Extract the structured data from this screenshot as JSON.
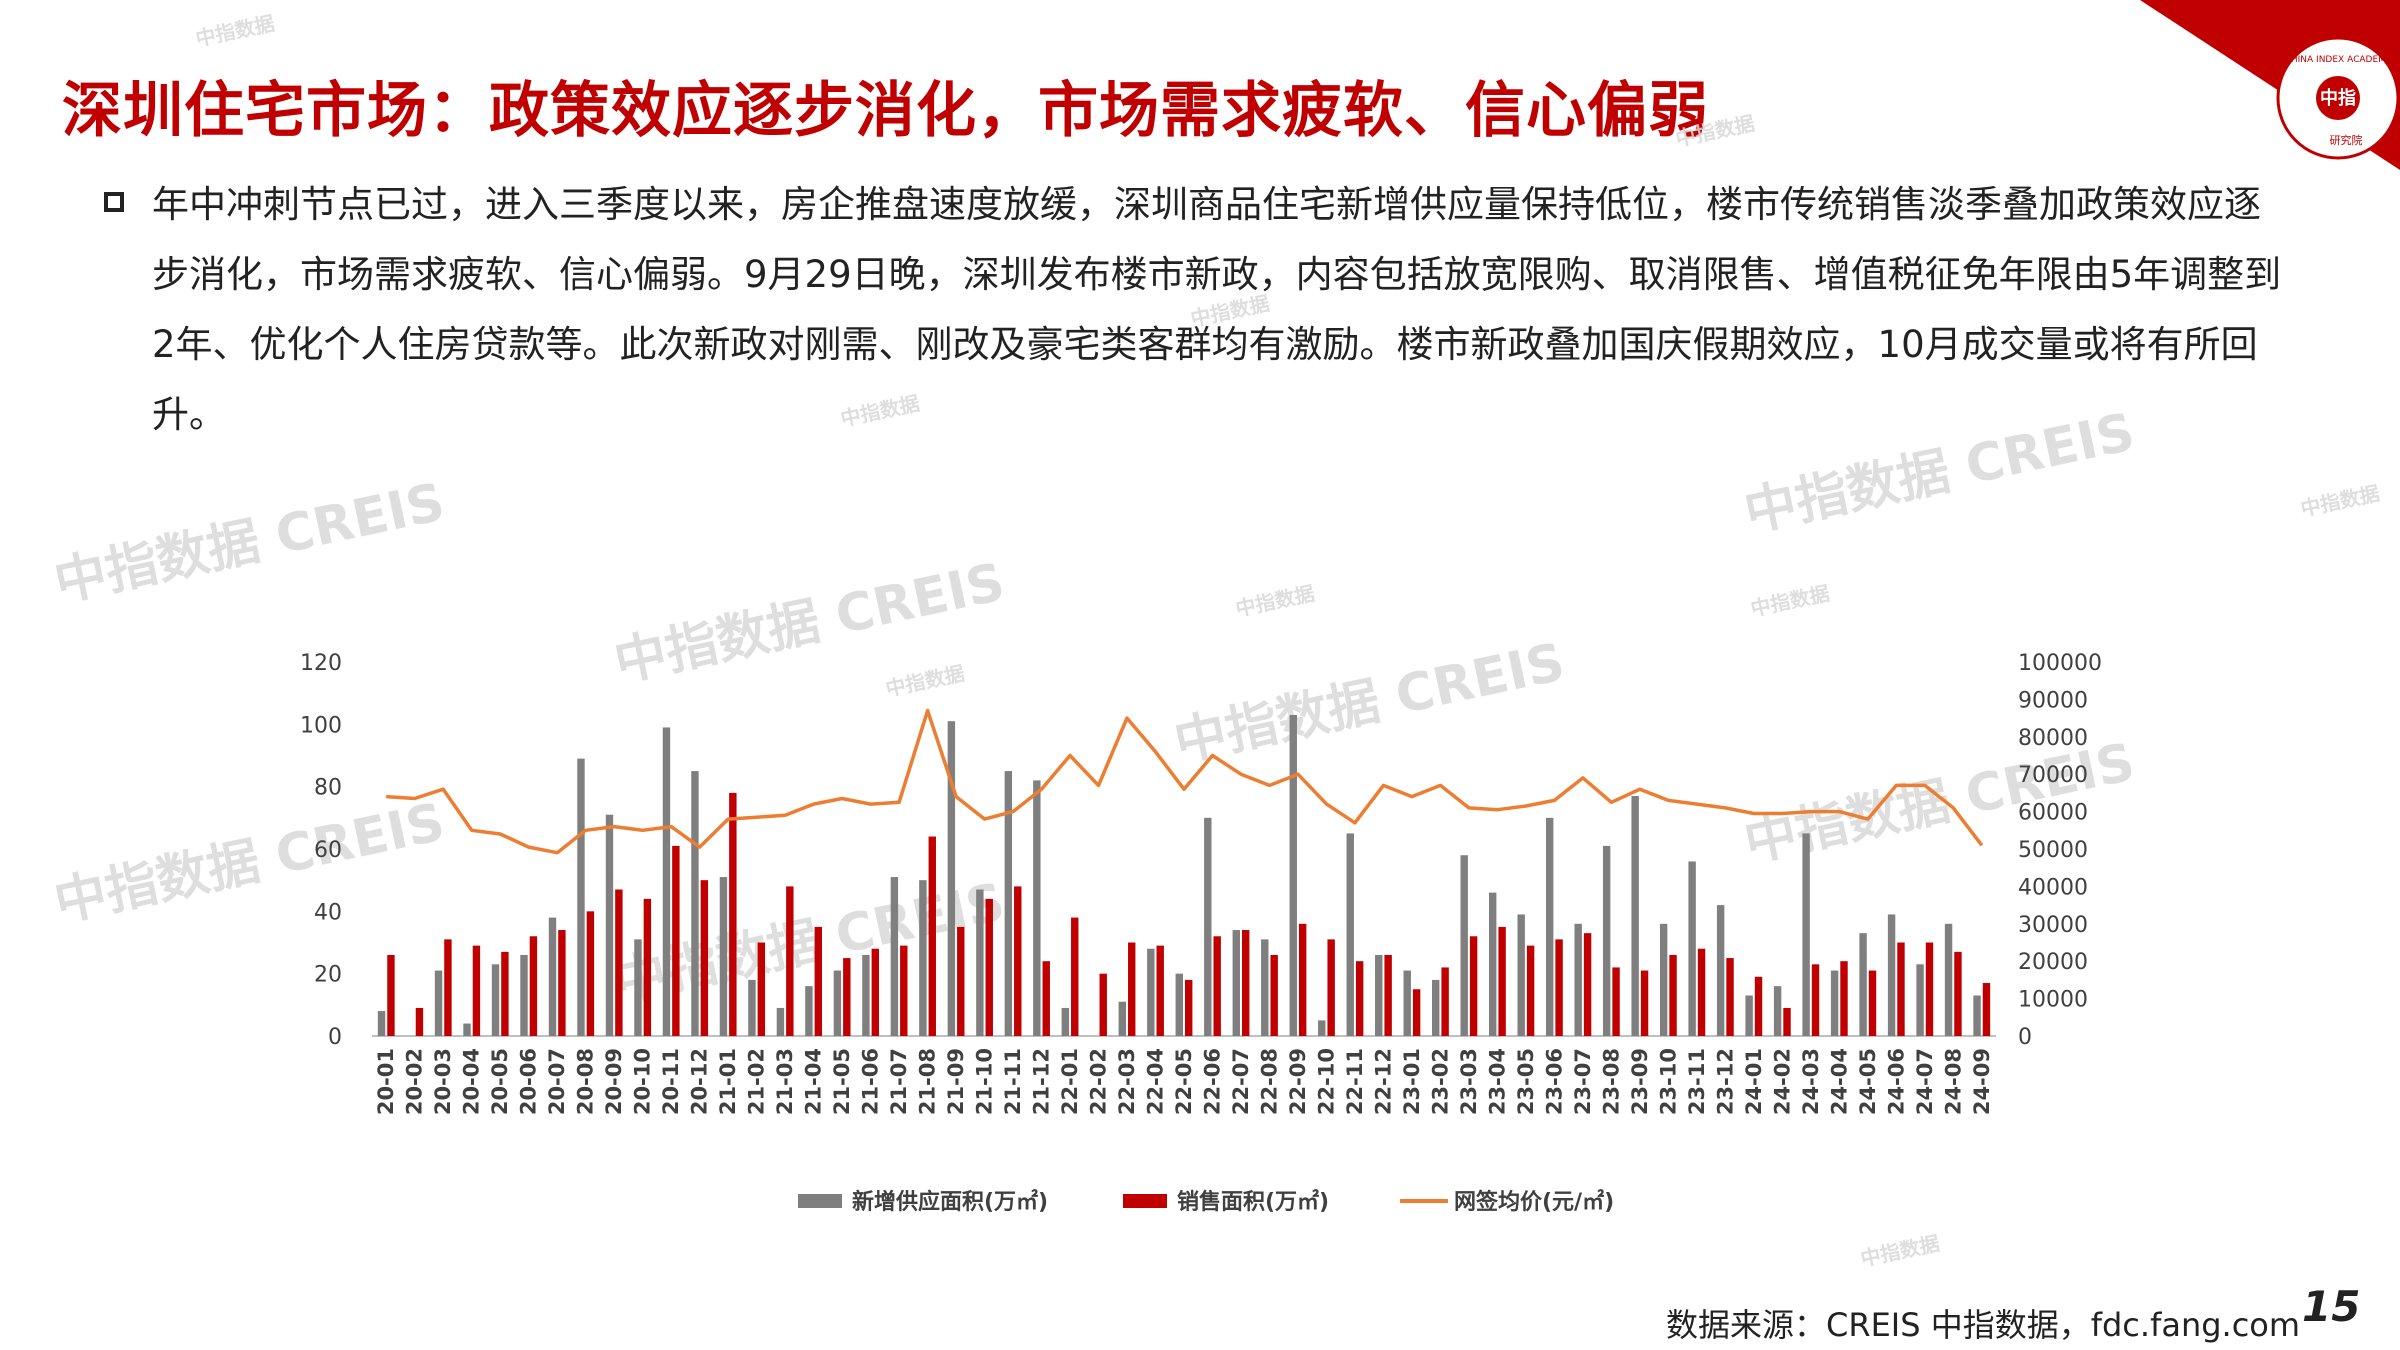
{
  "slide": {
    "title": "深圳住宅市场：政策效应逐步消化，市场需求疲软、信心偏弱",
    "body": "年中冲刺节点已过，进入三季度以来，房企推盘速度放缓，深圳商品住宅新增供应量保持低位，楼市传统销售淡季叠加政策效应逐步消化，市场需求疲软、信心偏弱。9月29日晚，深圳发布楼市新政，内容包括放宽限购、取消限售、增值税征免年限由5年调整到2年、优化个人住房贷款等。此次新政对刚需、刚改及豪宅类客群均有激励。楼市新政叠加国庆假期效应，10月成交量或将有所回升。",
    "source": "数据来源：CREIS 中指数据，fdc.fang.com",
    "page_number": "15",
    "logo_text": "CHINA INDEX ACADEMY",
    "logo_center": "中指",
    "logo_bottom": "研究院",
    "watermark_big": "中指数据 CREIS",
    "watermark_small_1": "中指数据",
    "watermark_small_2": "CREIS",
    "colors": {
      "title": "#c00000",
      "supply": "#7f7f7f",
      "sales": "#c00000",
      "price": "#ed7d31"
    }
  },
  "chart_data": {
    "type": "bar",
    "categories": [
      "20-01",
      "20-02",
      "20-03",
      "20-04",
      "20-05",
      "20-06",
      "20-07",
      "20-08",
      "20-09",
      "20-10",
      "20-11",
      "20-12",
      "21-01",
      "21-02",
      "21-03",
      "21-04",
      "21-05",
      "21-06",
      "21-07",
      "21-08",
      "21-09",
      "21-10",
      "21-11",
      "21-12",
      "22-01",
      "22-02",
      "22-03",
      "22-04",
      "22-05",
      "22-06",
      "22-07",
      "22-08",
      "22-09",
      "22-10",
      "22-11",
      "22-12",
      "23-01",
      "23-02",
      "23-03",
      "23-04",
      "23-05",
      "23-06",
      "23-07",
      "23-08",
      "23-09",
      "23-10",
      "23-11",
      "23-12",
      "24-01",
      "24-02",
      "24-03",
      "24-04",
      "24-05",
      "24-06",
      "24-07",
      "24-08",
      "24-09"
    ],
    "series": [
      {
        "name": "新增供应面积(万㎡)",
        "type": "bar",
        "axis": "left",
        "values": [
          8,
          0,
          21,
          4,
          23,
          26,
          38,
          89,
          71,
          31,
          99,
          85,
          51,
          18,
          9,
          16,
          21,
          26,
          51,
          50,
          101,
          47,
          85,
          82,
          9,
          0,
          11,
          28,
          20,
          70,
          34,
          31,
          103,
          5,
          65,
          26,
          21,
          18,
          58,
          46,
          39,
          70,
          36,
          61,
          77,
          36,
          56,
          42,
          13,
          16,
          65,
          21,
          33,
          39,
          23,
          36,
          13
        ]
      },
      {
        "name": "销售面积(万㎡)",
        "type": "bar",
        "axis": "left",
        "values": [
          26,
          9,
          31,
          29,
          27,
          32,
          34,
          40,
          47,
          44,
          61,
          50,
          78,
          30,
          48,
          35,
          25,
          28,
          29,
          64,
          35,
          44,
          48,
          24,
          38,
          20,
          30,
          29,
          18,
          32,
          34,
          26,
          36,
          31,
          24,
          26,
          15,
          22,
          32,
          35,
          29,
          31,
          33,
          22,
          21,
          26,
          28,
          25,
          19,
          9,
          23,
          24,
          21,
          30,
          30,
          27,
          17
        ]
      },
      {
        "name": "网签均价(元/㎡)",
        "type": "line",
        "axis": "right",
        "values": [
          64000,
          63500,
          66000,
          55000,
          54000,
          50500,
          49000,
          55000,
          56000,
          55000,
          56000,
          50500,
          58000,
          58500,
          59000,
          62000,
          63500,
          62000,
          62500,
          87000,
          64000,
          58000,
          60000,
          66000,
          75000,
          67000,
          85000,
          76000,
          66000,
          75000,
          70000,
          67000,
          70000,
          62000,
          57000,
          67000,
          64000,
          67000,
          61000,
          60500,
          61500,
          63000,
          69000,
          62500,
          66000,
          63000,
          62000,
          61000,
          59500,
          59500,
          60000,
          60000,
          58000,
          67000,
          67000,
          61000,
          51000
        ]
      }
    ],
    "left_axis": {
      "min": 0,
      "max": 120,
      "ticks": [
        0,
        20,
        40,
        60,
        80,
        100,
        120
      ]
    },
    "right_axis": {
      "min": 0,
      "max": 100000,
      "ticks": [
        0,
        10000,
        20000,
        30000,
        40000,
        50000,
        60000,
        70000,
        80000,
        90000,
        100000
      ]
    },
    "legend_position": "bottom",
    "grid": false
  }
}
